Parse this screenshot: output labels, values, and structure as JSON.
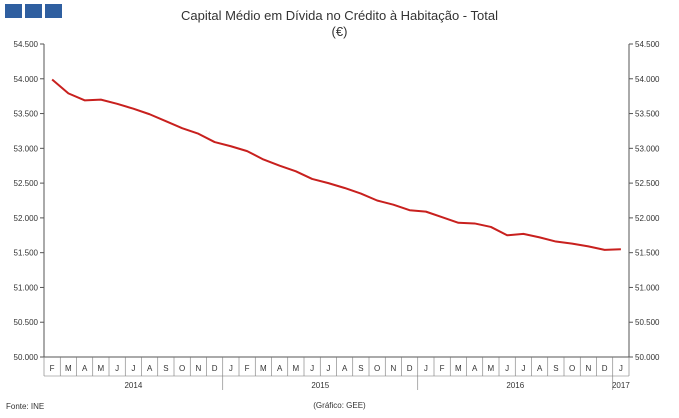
{
  "header": {
    "title": "Capital Médio em Dívida no Crédito à Habitação - Total",
    "subtitle": "(€)"
  },
  "footer": {
    "source": "Fonte: INE",
    "credit": "(Gráfico:  GEE)"
  },
  "colors": {
    "line": "#c8201e",
    "logo": "#2f5fa0"
  },
  "chart_data": {
    "type": "line",
    "title": "Capital Médio em Dívida no Crédito à Habitação - Total",
    "subtitle": "(€)",
    "ylim": [
      50000,
      54500
    ],
    "yticks": [
      50000,
      50500,
      51000,
      51500,
      52000,
      52500,
      53000,
      53500,
      54000,
      54500
    ],
    "ytick_labels": [
      "50.000",
      "50.500",
      "51.000",
      "51.500",
      "52.000",
      "52.500",
      "53.000",
      "53.500",
      "54.000",
      "54.500"
    ],
    "grid": false,
    "month_labels": [
      "F",
      "M",
      "A",
      "M",
      "J",
      "J",
      "A",
      "S",
      "O",
      "N",
      "D",
      "J",
      "F",
      "M",
      "A",
      "M",
      "J",
      "J",
      "A",
      "S",
      "O",
      "N",
      "D",
      "J",
      "F",
      "M",
      "A",
      "M",
      "J",
      "J",
      "A",
      "S",
      "O",
      "N",
      "D",
      "J"
    ],
    "year_labels": [
      {
        "label": "2014",
        "start": 0,
        "end": 10
      },
      {
        "label": "2015",
        "start": 11,
        "end": 22
      },
      {
        "label": "2016",
        "start": 23,
        "end": 34
      },
      {
        "label": "2017",
        "start": 35,
        "end": 35
      }
    ],
    "series": [
      {
        "values": [
          53990,
          53790,
          53690,
          53700,
          53640,
          53570,
          53490,
          53390,
          53290,
          53210,
          53090,
          53030,
          52960,
          52840,
          52750,
          52670,
          52560,
          52500,
          52430,
          52350,
          52250,
          52190,
          52110,
          52090,
          52010,
          51930,
          51920,
          51870,
          51750,
          51770,
          51720,
          51660,
          51630,
          51590,
          51540,
          51550
        ]
      }
    ]
  }
}
